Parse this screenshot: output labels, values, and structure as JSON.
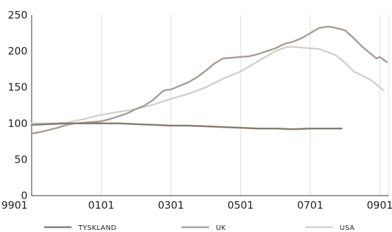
{
  "chart_data": {
    "type": "line",
    "title": "",
    "xlabel": "",
    "ylabel": "",
    "ylim": [
      0,
      250
    ],
    "yticks": [
      0,
      50,
      100,
      150,
      200,
      250
    ],
    "ytick_labels": [
      "0",
      "50",
      "100",
      "150",
      "200",
      "250"
    ],
    "xlim": [
      1999.0,
      2009.25
    ],
    "xticks": [
      1999.0,
      2001.0,
      2003.0,
      2005.0,
      2007.0,
      2009.0
    ],
    "xtick_labels": [
      "9901",
      "0101",
      "0301",
      "0501",
      "0701",
      "0901"
    ],
    "grid": "vertical",
    "legend_position": "bottom",
    "series": [
      {
        "name": "TYSKLAND",
        "color": "#857a6e",
        "x": [
          1999.0,
          1999.5,
          2000.0,
          2000.5,
          2001.0,
          2001.5,
          2002.0,
          2002.5,
          2003.0,
          2003.5,
          2004.0,
          2004.5,
          2005.0,
          2005.5,
          2006.0,
          2006.5,
          2007.0,
          2007.5,
          2007.9
        ],
        "values": [
          98,
          99,
          100,
          100,
          100,
          100,
          99,
          98,
          97,
          97,
          96,
          95,
          94,
          93,
          93,
          92,
          93,
          93,
          93
        ]
      },
      {
        "name": "UK",
        "color": "#a49d95",
        "x": [
          1999.0,
          1999.25,
          1999.5,
          1999.75,
          2000.0,
          2000.25,
          2000.5,
          2000.75,
          2001.0,
          2001.25,
          2001.5,
          2001.75,
          2002.0,
          2002.25,
          2002.5,
          2002.75,
          2002.83,
          2003.0,
          2003.25,
          2003.5,
          2003.75,
          2004.0,
          2004.25,
          2004.5,
          2004.75,
          2005.0,
          2005.25,
          2005.5,
          2005.75,
          2006.0,
          2006.25,
          2006.5,
          2006.75,
          2007.0,
          2007.25,
          2007.5,
          2007.67,
          2007.83,
          2008.0,
          2008.25,
          2008.5,
          2008.75,
          2008.9,
          2009.0,
          2009.2
        ],
        "values": [
          86,
          88,
          91,
          94,
          98,
          100,
          101,
          102,
          103,
          106,
          110,
          114,
          120,
          125,
          133,
          144,
          146,
          147,
          152,
          157,
          164,
          173,
          183,
          190,
          191,
          192,
          193,
          196,
          200,
          204,
          210,
          213,
          218,
          225,
          232,
          234,
          233,
          231,
          229,
          218,
          206,
          196,
          190,
          192,
          185
        ]
      },
      {
        "name": "USA",
        "color": "#d3d0cc",
        "x": [
          1999.0,
          1999.5,
          2000.0,
          2000.5,
          2001.0,
          2001.5,
          2002.0,
          2002.5,
          2003.0,
          2003.5,
          2004.0,
          2004.5,
          2005.0,
          2005.5,
          2006.0,
          2006.33,
          2006.5,
          2007.0,
          2007.25,
          2007.5,
          2007.75,
          2008.0,
          2008.25,
          2008.5,
          2008.75,
          2009.0,
          2009.1
        ],
        "values": [
          100,
          100,
          101,
          106,
          112,
          116,
          120,
          126,
          134,
          141,
          150,
          162,
          172,
          186,
          200,
          206,
          206,
          204,
          203,
          199,
          194,
          184,
          172,
          166,
          160,
          150,
          146
        ]
      }
    ]
  }
}
